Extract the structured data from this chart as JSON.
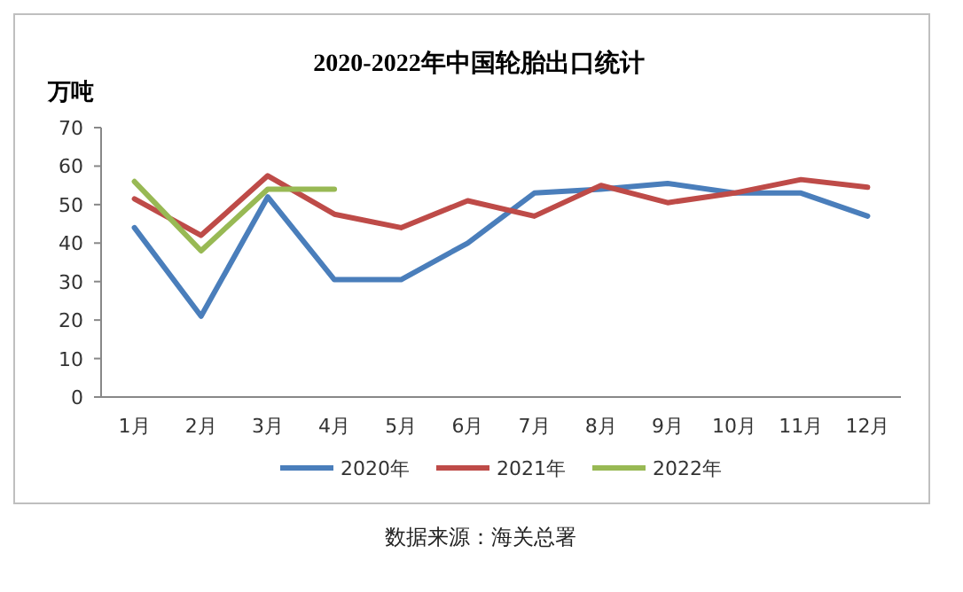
{
  "chart_data": {
    "type": "line",
    "title": "2020-2022年中国轮胎出口统计",
    "ylabel": "万吨",
    "categories": [
      "1月",
      "2月",
      "3月",
      "4月",
      "5月",
      "6月",
      "7月",
      "8月",
      "9月",
      "10月",
      "11月",
      "12月"
    ],
    "series": [
      {
        "name": "2020年",
        "color": "#4a7ebb",
        "values": [
          44,
          21,
          52,
          30.5,
          30.5,
          40,
          53,
          54,
          55.5,
          53,
          53,
          47
        ]
      },
      {
        "name": "2021年",
        "color": "#be4b48",
        "values": [
          51.5,
          42,
          57.5,
          47.5,
          44,
          51,
          47,
          55,
          50.5,
          53,
          56.5,
          54.5
        ]
      },
      {
        "name": "2022年",
        "color": "#98b954",
        "values": [
          56,
          38,
          54,
          54,
          null,
          null,
          null,
          null,
          null,
          null,
          null,
          null
        ]
      }
    ],
    "ylim": [
      0,
      70
    ],
    "yticks": [
      0,
      10,
      20,
      30,
      40,
      50,
      60,
      70
    ],
    "grid": false,
    "legend": "bottom",
    "marker": "none",
    "line_style": "solid",
    "annotations": [
      "数据来源：海关总署"
    ]
  }
}
